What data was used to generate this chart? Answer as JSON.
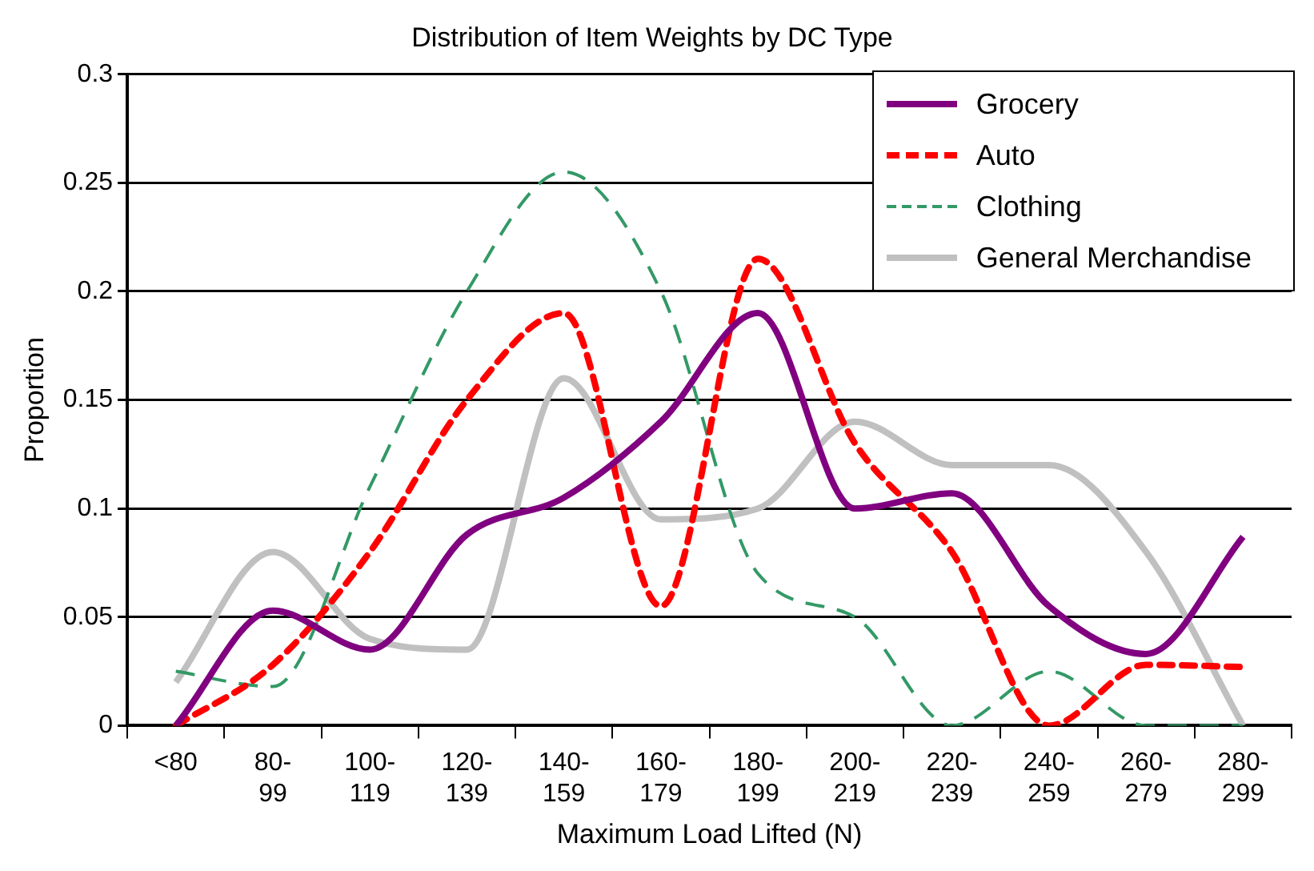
{
  "chart_data": {
    "type": "line",
    "title": "Distribution of Item Weights by DC Type",
    "xlabel": "Maximum Load Lifted (N)",
    "ylabel": "Proportion",
    "categories": [
      "<80",
      "80-99",
      "100-119",
      "120-139",
      "140-159",
      "160-179",
      "180-199",
      "200-219",
      "220-239",
      "240-259",
      "260-279",
      "280-299"
    ],
    "series": [
      {
        "name": "Grocery",
        "color": "#800080",
        "line_style": "solid",
        "values": [
          0,
          0.053,
          0.035,
          0.088,
          0.105,
          0.14,
          0.19,
          0.1,
          0.107,
          0.055,
          0.033,
          0.087
        ]
      },
      {
        "name": "Auto",
        "color": "#ff0000",
        "line_style": "dotted",
        "values": [
          0,
          0.028,
          0.08,
          0.15,
          0.19,
          0.055,
          0.215,
          0.13,
          0.08,
          0,
          0.028,
          0.027
        ]
      },
      {
        "name": "Clothing",
        "color": "#339966",
        "line_style": "dashed",
        "values": [
          0.025,
          0.018,
          0.11,
          0.2,
          0.255,
          0.2,
          0.07,
          0.05,
          0,
          0.025,
          0,
          0
        ]
      },
      {
        "name": "General Merchandise",
        "color": "#c0c0c0",
        "line_style": "solid",
        "values": [
          0.02,
          0.08,
          0.04,
          0.035,
          0.16,
          0.095,
          0.1,
          0.14,
          0.12,
          0.12,
          0.08,
          0
        ]
      }
    ],
    "ylim": [
      0,
      0.3
    ],
    "yticks": [
      0,
      0.05,
      0.1,
      0.15,
      0.2,
      0.25,
      0.3
    ],
    "grid": "y",
    "legend": "top right",
    "marker": "none"
  }
}
